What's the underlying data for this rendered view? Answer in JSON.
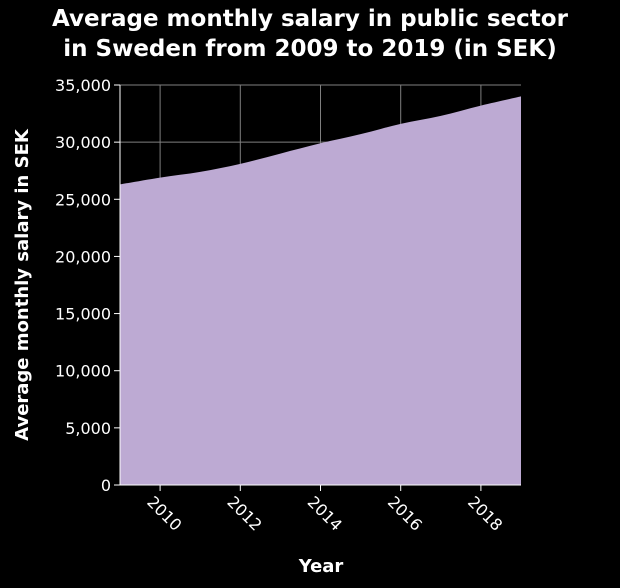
{
  "chart_data": {
    "type": "area",
    "title_line1": "Average monthly salary in public sector",
    "title_line2": "in Sweden from 2009 to 2019 (in SEK)",
    "xlabel": "Year",
    "ylabel": "Average monthly salary in SEK",
    "x": [
      2009,
      2010,
      2011,
      2012,
      2013,
      2014,
      2015,
      2016,
      2017,
      2018,
      2019
    ],
    "values": [
      26300,
      26900,
      27400,
      28100,
      29000,
      29900,
      30700,
      31600,
      32300,
      33200,
      34000
    ],
    "xlim": [
      2009,
      2019
    ],
    "ylim": [
      0,
      35000
    ],
    "x_ticks": [
      "2010",
      "2012",
      "2014",
      "2016",
      "2018"
    ],
    "y_ticks": [
      "0",
      "5,000",
      "10,000",
      "15,000",
      "20,000",
      "25,000",
      "30,000",
      "35,000"
    ],
    "grid": true,
    "fill_color": "#bdaad3",
    "background_color": "#000000",
    "grid_color": "#7f7f7f"
  }
}
